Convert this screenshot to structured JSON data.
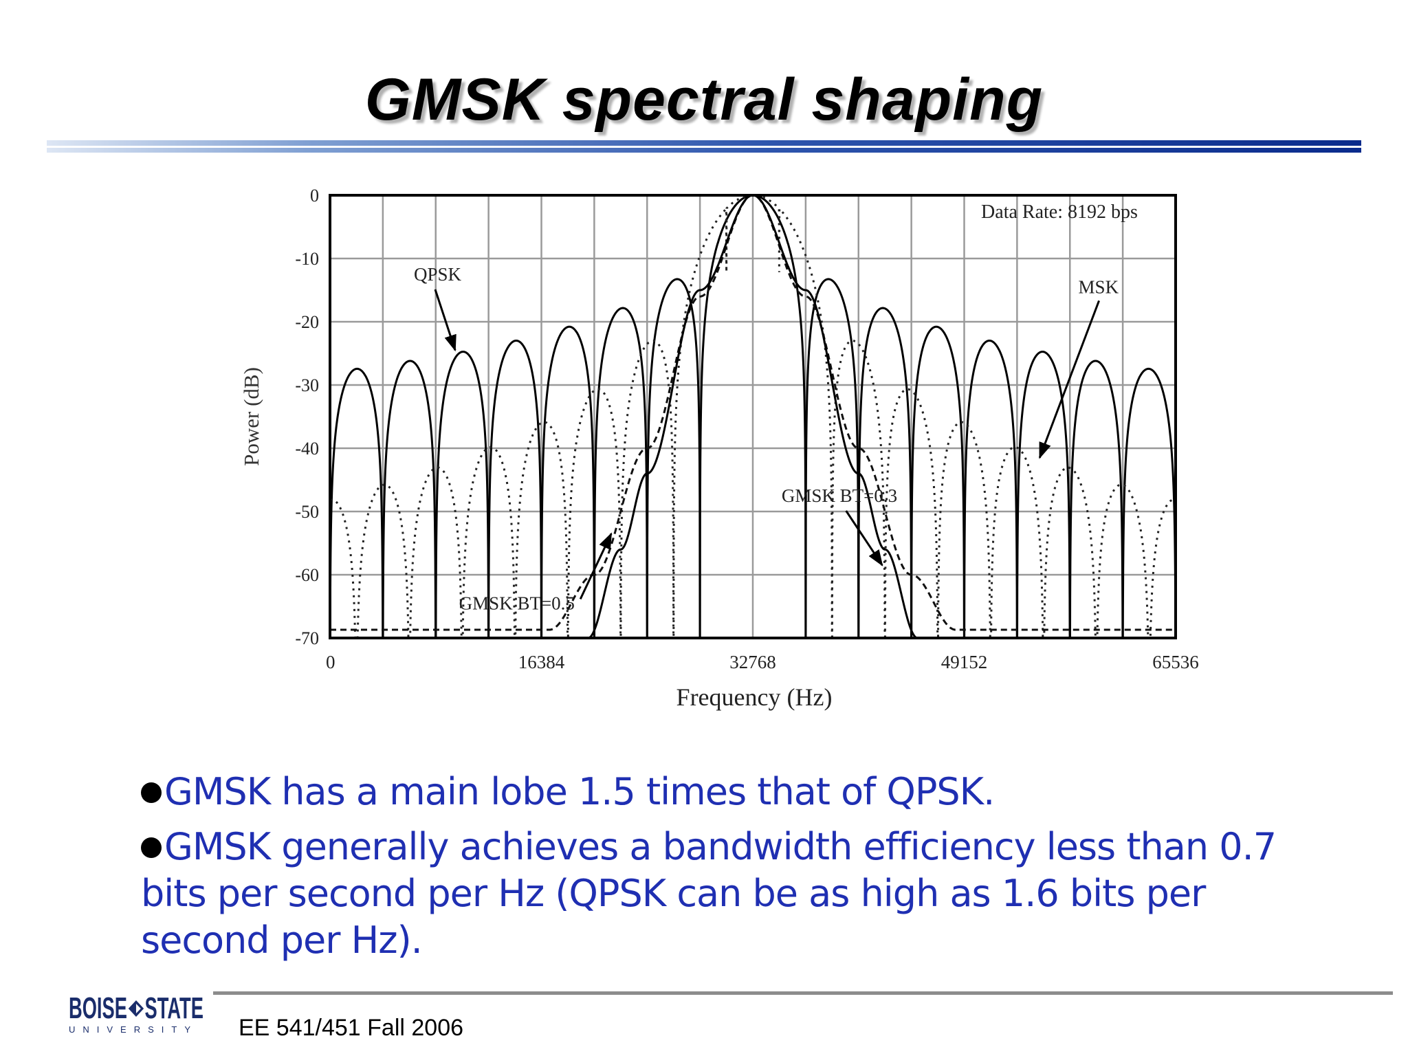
{
  "slide": {
    "title": "GMSK spectral shaping",
    "bullets": [
      "GMSK has a main lobe 1.5 times that of QPSK.",
      "GMSK generally achieves a bandwidth efficiency less than 0.7 bits per second per Hz (QPSK can be as high as 1.6 bits per second per Hz)."
    ],
    "footer": {
      "course": "EE 541/451 Fall 2006",
      "logo_word_left": "BOISE",
      "logo_word_right": "STATE",
      "logo_subtitle": "UNIVERSITY"
    }
  },
  "colors": {
    "title_rule": "#0a2b8c",
    "bullet_text": "#1f2fb2",
    "footer_rule": "#8c8c8c",
    "logo": "#1a2d6b"
  },
  "chart_data": {
    "type": "line",
    "xlabel": "Frequency (Hz)",
    "ylabel": "Power (dB)",
    "xlim": [
      0,
      65536
    ],
    "ylim": [
      -70,
      0
    ],
    "x_ticks": [
      0,
      16384,
      32768,
      49152,
      65536
    ],
    "y_ticks": [
      0,
      -10,
      -20,
      -30,
      -40,
      -50,
      -60,
      -70
    ],
    "grid": true,
    "data_rate_annotation": "Data Rate: 8192 bps",
    "center_frequency": 32768,
    "data_rate": 8192,
    "series": [
      {
        "name": "QPSK",
        "style": "solid",
        "null_spacing_hz": 4096,
        "sidelobe_peaks": [
          {
            "x": 2048,
            "y": -27.3
          },
          {
            "x": 6144,
            "y": -26.4
          },
          {
            "x": 10240,
            "y": -25
          },
          {
            "x": 14336,
            "y": -22.9
          },
          {
            "x": 18432,
            "y": -20.6
          },
          {
            "x": 22528,
            "y": -17.8
          },
          {
            "x": 26624,
            "y": -14.1
          },
          {
            "x": 32768,
            "y": 0
          },
          {
            "x": 38912,
            "y": -14.1
          },
          {
            "x": 43008,
            "y": -17.8
          },
          {
            "x": 47104,
            "y": -20.6
          },
          {
            "x": 51200,
            "y": -22.9
          },
          {
            "x": 55296,
            "y": -25
          },
          {
            "x": 59392,
            "y": -26.4
          },
          {
            "x": 63488,
            "y": -27.3
          }
        ]
      },
      {
        "name": "MSK",
        "style": "dotted",
        "null_spacing_hz": 6144,
        "sidelobe_peaks": [
          {
            "x": 3072,
            "y": -46
          },
          {
            "x": 9216,
            "y": -44
          },
          {
            "x": 15360,
            "y": -42
          },
          {
            "x": 21504,
            "y": -38
          },
          {
            "x": 27648,
            "y": -23
          },
          {
            "x": 32768,
            "y": 0
          },
          {
            "x": 37888,
            "y": -23
          },
          {
            "x": 44032,
            "y": -38
          },
          {
            "x": 50176,
            "y": -42
          },
          {
            "x": 56320,
            "y": -44
          },
          {
            "x": 62464,
            "y": -46
          }
        ]
      },
      {
        "name": "GMSK BT=0.5",
        "style": "dashed",
        "points": [
          {
            "x": 17000,
            "y": -68.7
          },
          {
            "x": 20480,
            "y": -60
          },
          {
            "x": 24576,
            "y": -40
          },
          {
            "x": 28672,
            "y": -16
          },
          {
            "x": 32768,
            "y": 0
          },
          {
            "x": 36864,
            "y": -16
          },
          {
            "x": 40960,
            "y": -40
          },
          {
            "x": 45056,
            "y": -60
          },
          {
            "x": 48500,
            "y": -68.7
          }
        ]
      },
      {
        "name": "GMSK BT=0.3",
        "style": "solid",
        "points": [
          {
            "x": 20000,
            "y": -70
          },
          {
            "x": 22528,
            "y": -56
          },
          {
            "x": 24576,
            "y": -44
          },
          {
            "x": 28672,
            "y": -15
          },
          {
            "x": 32768,
            "y": 0
          },
          {
            "x": 36864,
            "y": -15
          },
          {
            "x": 40960,
            "y": -44
          },
          {
            "x": 43008,
            "y": -56
          },
          {
            "x": 45536,
            "y": -70
          }
        ]
      }
    ],
    "annotations": [
      {
        "text": "QPSK",
        "x": 6500,
        "y": -12.5,
        "arrow_to": {
          "x": 9700,
          "y": -24.5
        }
      },
      {
        "text": "MSK",
        "x": 58000,
        "y": -14.5,
        "arrow_to": {
          "x": 55000,
          "y": -41.5
        }
      },
      {
        "text": "GMSK BT=0.3",
        "x": 35000,
        "y": -47.5,
        "arrow_to": {
          "x": 42800,
          "y": -58.5
        }
      },
      {
        "text": "GMSK BT=0.5",
        "x": 10000,
        "y": -64.5,
        "arrow_to": {
          "x": 21800,
          "y": -53.5
        }
      }
    ]
  }
}
